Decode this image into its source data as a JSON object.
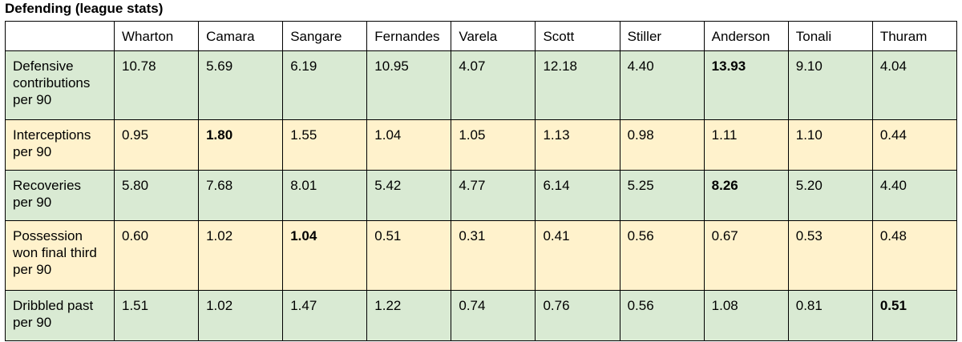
{
  "title": "Defending (league stats)",
  "table": {
    "header": [
      "Wharton",
      "Camara",
      "Sangare",
      "Fernandes",
      "Varela",
      "Scott",
      "Stiller",
      "Anderson",
      "Tonali",
      "Thuram"
    ],
    "rows": [
      {
        "label": "Defensive contributions per 90",
        "color": "#d9ead3",
        "bold_col": 7,
        "values": [
          "10.78",
          "5.69",
          "6.19",
          "10.95",
          "4.07",
          "12.18",
          "4.40",
          "13.93",
          "9.10",
          "4.04"
        ]
      },
      {
        "label": "Interceptions per 90",
        "color": "#fff2cc",
        "bold_col": 1,
        "values": [
          "0.95",
          "1.80",
          "1.55",
          "1.04",
          "1.05",
          "1.13",
          "0.98",
          "1.11",
          "1.10",
          "0.44"
        ]
      },
      {
        "label": "Recoveries per 90",
        "color": "#d9ead3",
        "bold_col": 7,
        "values": [
          "5.80",
          "7.68",
          "8.01",
          "5.42",
          "4.77",
          "6.14",
          "5.25",
          "8.26",
          "5.20",
          "4.40"
        ]
      },
      {
        "label": "Possession won final third per 90",
        "color": "#fff2cc",
        "bold_col": 2,
        "values": [
          "0.60",
          "1.02",
          "1.04",
          "0.51",
          "0.31",
          "0.41",
          "0.56",
          "0.67",
          "0.53",
          "0.48"
        ]
      },
      {
        "label": "Dribbled past per 90",
        "color": "#d9ead3",
        "bold_col": 9,
        "values": [
          "1.51",
          "1.02",
          "1.47",
          "1.22",
          "0.74",
          "0.76",
          "0.56",
          "1.08",
          "0.81",
          "0.51"
        ]
      }
    ]
  }
}
